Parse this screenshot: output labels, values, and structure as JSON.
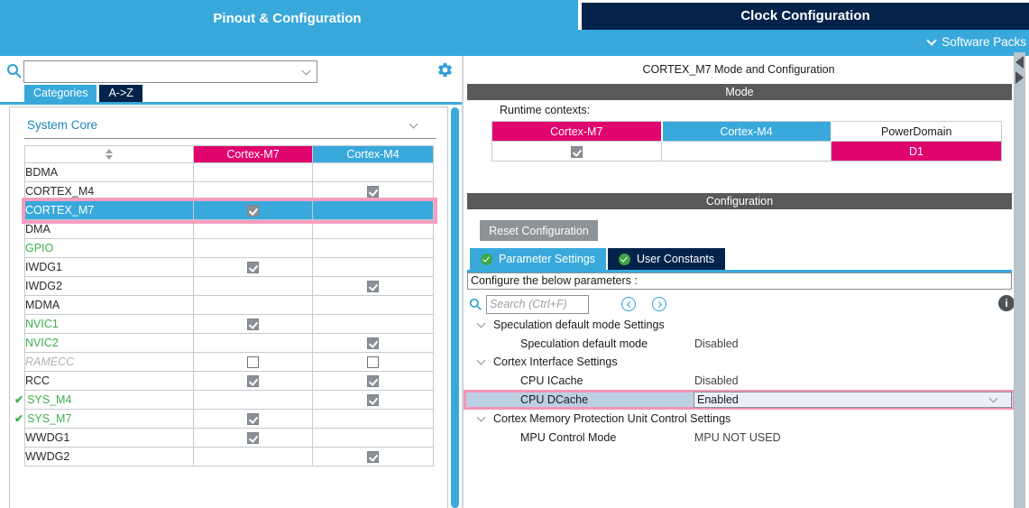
{
  "header": {
    "tabs": [
      {
        "label": "Pinout & Configuration",
        "active": true
      },
      {
        "label": "Clock Configuration",
        "active": false
      }
    ],
    "software_packs_label": "Software Packs"
  },
  "left_panel": {
    "search": {
      "value": "",
      "placeholder": ""
    },
    "tabs": [
      {
        "label": "Categories",
        "active": true
      },
      {
        "label": "A->Z",
        "active": false
      }
    ],
    "section_title": "System Core",
    "table": {
      "columns": [
        "Cortex-M7",
        "Cortex-M4"
      ],
      "rows": [
        {
          "name": "BDMA",
          "style": "normal",
          "m7": "none",
          "m4": "none"
        },
        {
          "name": "CORTEX_M4",
          "style": "normal",
          "m7": "none",
          "m4": "checked"
        },
        {
          "name": "CORTEX_M7",
          "style": "normal",
          "m7": "checked",
          "m4": "none",
          "selected": true
        },
        {
          "name": "DMA",
          "style": "normal",
          "m7": "none",
          "m4": "none"
        },
        {
          "name": "GPIO",
          "style": "green",
          "m7": "none",
          "m4": "none"
        },
        {
          "name": "IWDG1",
          "style": "normal",
          "m7": "checked",
          "m4": "none"
        },
        {
          "name": "IWDG2",
          "style": "normal",
          "m7": "none",
          "m4": "checked"
        },
        {
          "name": "MDMA",
          "style": "normal",
          "m7": "none",
          "m4": "none"
        },
        {
          "name": "NVIC1",
          "style": "green",
          "m7": "checked",
          "m4": "none"
        },
        {
          "name": "NVIC2",
          "style": "green",
          "m7": "none",
          "m4": "checked"
        },
        {
          "name": "RAMECC",
          "style": "disabled",
          "m7": "unchecked",
          "m4": "unchecked"
        },
        {
          "name": "RCC",
          "style": "normal",
          "m7": "checked",
          "m4": "checked"
        },
        {
          "name": "SYS_M4",
          "style": "green",
          "m7": "none",
          "m4": "checked",
          "prefix_check": true
        },
        {
          "name": "SYS_M7",
          "style": "green",
          "m7": "checked",
          "m4": "none",
          "prefix_check": true
        },
        {
          "name": "WWDG1",
          "style": "normal",
          "m7": "checked",
          "m4": "none"
        },
        {
          "name": "WWDG2",
          "style": "normal",
          "m7": "none",
          "m4": "checked"
        }
      ]
    }
  },
  "right_panel": {
    "title": "CORTEX_M7 Mode and Configuration",
    "mode": {
      "bar_label": "Mode",
      "runtime_label": "Runtime contexts:",
      "table": {
        "headers": [
          {
            "label": "Cortex-M7",
            "color": "magenta"
          },
          {
            "label": "Cortex-M4",
            "color": "blue"
          },
          {
            "label": "PowerDomain",
            "color": "white"
          }
        ],
        "row": {
          "m7_checked": true,
          "m4_checked": false,
          "d1": "D1"
        }
      }
    },
    "configuration": {
      "bar_label": "Configuration",
      "reset_button": "Reset Configuration",
      "tabs": [
        {
          "label": "Parameter Settings",
          "active": true
        },
        {
          "label": "User Constants",
          "active": false
        }
      ],
      "configure_label": "Configure the below parameters :",
      "search_placeholder": "Search (Ctrl+F)",
      "tree": [
        {
          "type": "group",
          "label": "Speculation default mode Settings"
        },
        {
          "type": "param",
          "label": "Speculation default mode",
          "value": "Disabled"
        },
        {
          "type": "group",
          "label": "Cortex Interface Settings"
        },
        {
          "type": "param",
          "label": "CPU ICache",
          "value": "Disabled"
        },
        {
          "type": "param",
          "label": "CPU DCache",
          "value": "Enabled",
          "selected": true,
          "dropdown": true
        },
        {
          "type": "group",
          "label": "Cortex Memory Protection Unit Control Settings"
        },
        {
          "type": "param",
          "label": "MPU Control Mode",
          "value": "MPU NOT USED"
        }
      ]
    }
  },
  "icons": {
    "green_tick": "✔",
    "info": "i"
  },
  "colors": {
    "accent_blue": "#39A9DC",
    "accent_magenta": "#E0046E",
    "navy": "#03234B",
    "bar_gray": "#58595B",
    "button_gray": "#8E9397",
    "green": "#3CB04C",
    "highlight_pink": "#F49EC0",
    "selection_blue": "#BCD0E4"
  }
}
